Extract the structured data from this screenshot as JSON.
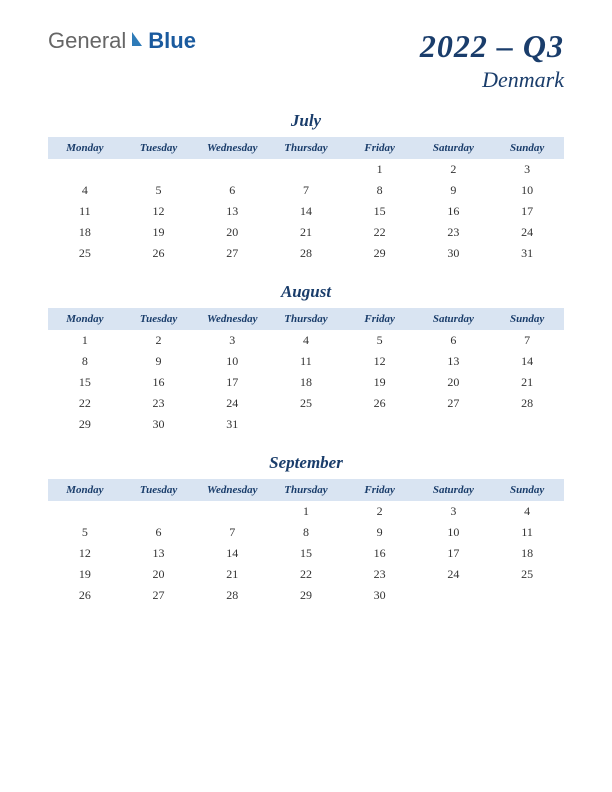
{
  "logo": {
    "text_general": "General",
    "text_blue": "Blue",
    "icon_color": "#2e7bb8"
  },
  "title": {
    "main": "2022 – Q3",
    "sub": "Denmark",
    "color": "#1a3d6b",
    "main_fontsize": 32,
    "sub_fontsize": 22
  },
  "day_headers": [
    "Monday",
    "Tuesday",
    "Wednesday",
    "Thursday",
    "Friday",
    "Saturday",
    "Sunday"
  ],
  "header_bg": "#d9e4f2",
  "header_text_color": "#1a3d6b",
  "cell_text_color": "#333333",
  "background_color": "#ffffff",
  "months": [
    {
      "name": "July",
      "weeks": [
        [
          "",
          "",
          "",
          "",
          "1",
          "2",
          "3"
        ],
        [
          "4",
          "5",
          "6",
          "7",
          "8",
          "9",
          "10"
        ],
        [
          "11",
          "12",
          "13",
          "14",
          "15",
          "16",
          "17"
        ],
        [
          "18",
          "19",
          "20",
          "21",
          "22",
          "23",
          "24"
        ],
        [
          "25",
          "26",
          "27",
          "28",
          "29",
          "30",
          "31"
        ]
      ]
    },
    {
      "name": "August",
      "weeks": [
        [
          "1",
          "2",
          "3",
          "4",
          "5",
          "6",
          "7"
        ],
        [
          "8",
          "9",
          "10",
          "11",
          "12",
          "13",
          "14"
        ],
        [
          "15",
          "16",
          "17",
          "18",
          "19",
          "20",
          "21"
        ],
        [
          "22",
          "23",
          "24",
          "25",
          "26",
          "27",
          "28"
        ],
        [
          "29",
          "30",
          "31",
          "",
          "",
          "",
          ""
        ]
      ]
    },
    {
      "name": "September",
      "weeks": [
        [
          "",
          "",
          "",
          "1",
          "2",
          "3",
          "4"
        ],
        [
          "5",
          "6",
          "7",
          "8",
          "9",
          "10",
          "11"
        ],
        [
          "12",
          "13",
          "14",
          "15",
          "16",
          "17",
          "18"
        ],
        [
          "19",
          "20",
          "21",
          "22",
          "23",
          "24",
          "25"
        ],
        [
          "26",
          "27",
          "28",
          "29",
          "30",
          "",
          ""
        ]
      ]
    }
  ]
}
